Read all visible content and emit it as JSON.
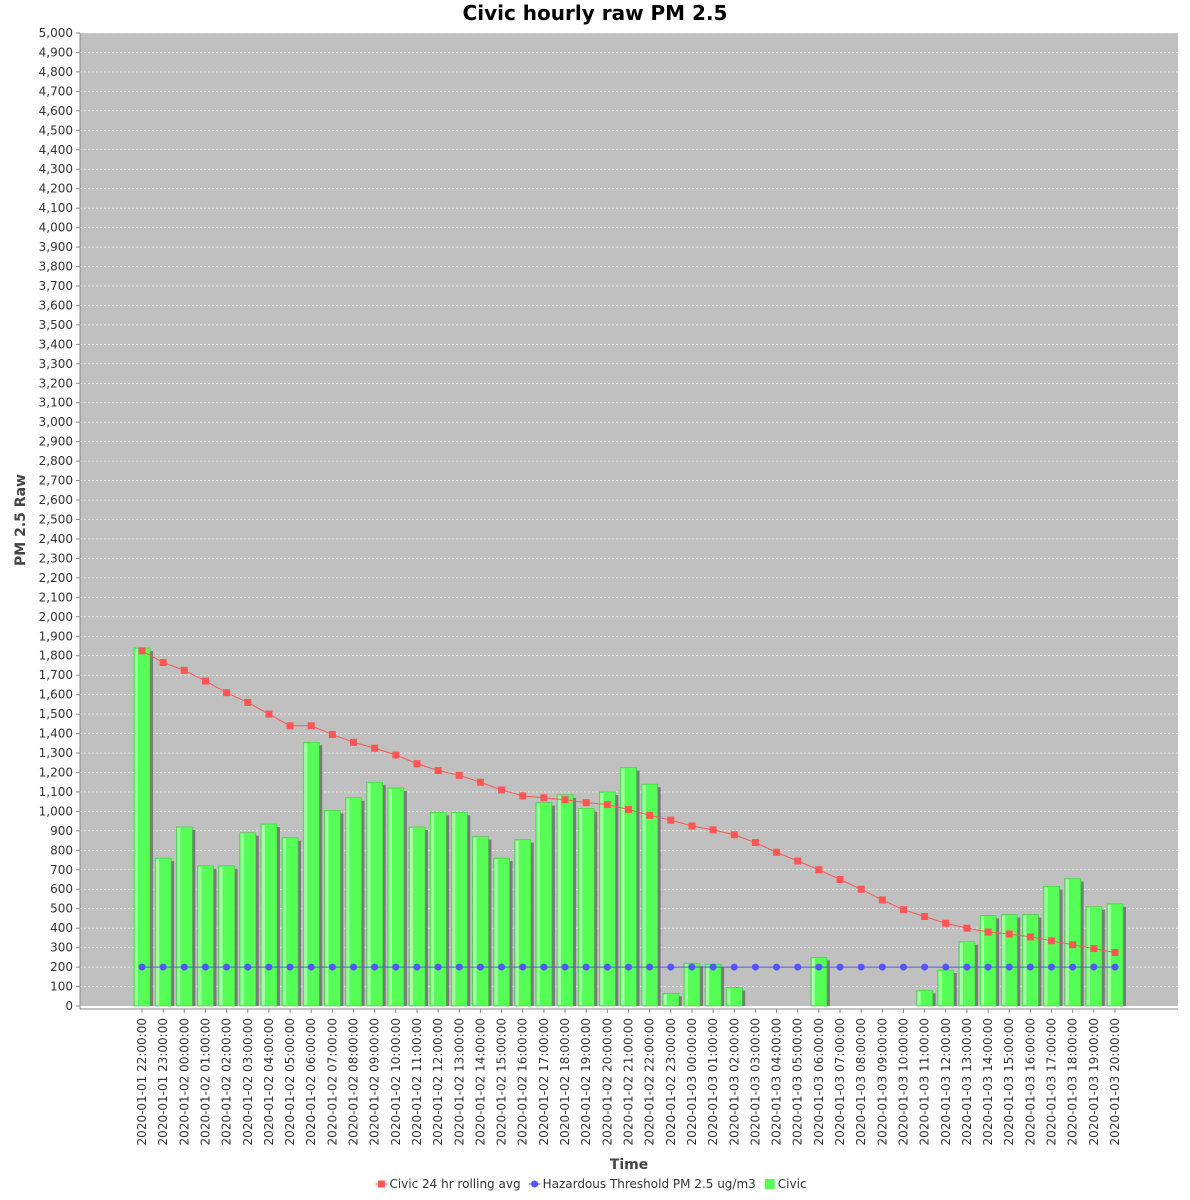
{
  "chart_data": {
    "type": "bar",
    "title": "Civic hourly raw PM 2.5",
    "xlabel": "Time",
    "ylabel": "PM 2.5 Raw",
    "ylim": [
      0,
      5000
    ],
    "ytick_step": 100,
    "grid": true,
    "legend_position": "bottom",
    "categories": [
      "2020-01-01 22:00:00",
      "2020-01-01 23:00:00",
      "2020-01-02 00:00:00",
      "2020-01-02 01:00:00",
      "2020-01-02 02:00:00",
      "2020-01-02 03:00:00",
      "2020-01-02 04:00:00",
      "2020-01-02 05:00:00",
      "2020-01-02 06:00:00",
      "2020-01-02 07:00:00",
      "2020-01-02 08:00:00",
      "2020-01-02 09:00:00",
      "2020-01-02 10:00:00",
      "2020-01-02 11:00:00",
      "2020-01-02 12:00:00",
      "2020-01-02 13:00:00",
      "2020-01-02 14:00:00",
      "2020-01-02 15:00:00",
      "2020-01-02 16:00:00",
      "2020-01-02 17:00:00",
      "2020-01-02 18:00:00",
      "2020-01-02 19:00:00",
      "2020-01-02 20:00:00",
      "2020-01-02 21:00:00",
      "2020-01-02 22:00:00",
      "2020-01-02 23:00:00",
      "2020-01-03 00:00:00",
      "2020-01-03 01:00:00",
      "2020-01-03 02:00:00",
      "2020-01-03 03:00:00",
      "2020-01-03 04:00:00",
      "2020-01-03 05:00:00",
      "2020-01-03 06:00:00",
      "2020-01-03 07:00:00",
      "2020-01-03 08:00:00",
      "2020-01-03 09:00:00",
      "2020-01-03 10:00:00",
      "2020-01-03 11:00:00",
      "2020-01-03 12:00:00",
      "2020-01-03 13:00:00",
      "2020-01-03 14:00:00",
      "2020-01-03 15:00:00",
      "2020-01-03 16:00:00",
      "2020-01-03 17:00:00",
      "2020-01-03 18:00:00",
      "2020-01-03 19:00:00",
      "2020-01-03 20:00:00"
    ],
    "series": [
      {
        "name": "Civic",
        "kind": "bar",
        "color": "#55ff55",
        "values": [
          1840,
          760,
          920,
          720,
          720,
          890,
          935,
          865,
          1355,
          1005,
          1070,
          1150,
          1120,
          920,
          995,
          995,
          870,
          760,
          855,
          1045,
          1085,
          1015,
          1100,
          1225,
          1140,
          65,
          220,
          215,
          95,
          0,
          0,
          0,
          250,
          0,
          0,
          0,
          0,
          80,
          185,
          330,
          465,
          470,
          470,
          615,
          655,
          510,
          525
        ]
      },
      {
        "name": "Civic 24 hr rolling avg",
        "kind": "line",
        "color": "#ff5555",
        "marker": "square",
        "values": [
          1825,
          1765,
          1725,
          1670,
          1610,
          1560,
          1500,
          1440,
          1440,
          1395,
          1355,
          1325,
          1290,
          1245,
          1210,
          1185,
          1150,
          1110,
          1080,
          1070,
          1060,
          1045,
          1035,
          1010,
          980,
          955,
          925,
          905,
          880,
          840,
          790,
          745,
          700,
          650,
          600,
          545,
          495,
          460,
          425,
          400,
          380,
          370,
          355,
          335,
          315,
          295,
          275
        ]
      },
      {
        "name": "Hazardous Threshold PM 2.5 ug/m3",
        "kind": "line",
        "color": "#5555ff",
        "marker": "circle",
        "values": [
          200,
          200,
          200,
          200,
          200,
          200,
          200,
          200,
          200,
          200,
          200,
          200,
          200,
          200,
          200,
          200,
          200,
          200,
          200,
          200,
          200,
          200,
          200,
          200,
          200,
          200,
          200,
          200,
          200,
          200,
          200,
          200,
          200,
          200,
          200,
          200,
          200,
          200,
          200,
          200,
          200,
          200,
          200,
          200,
          200,
          200,
          200
        ]
      }
    ],
    "legend": [
      {
        "label": "Civic 24 hr rolling avg",
        "color": "#ff5555",
        "marker": "square"
      },
      {
        "label": "Hazardous Threshold PM 2.5 ug/m3",
        "color": "#5555ff",
        "marker": "circle"
      },
      {
        "label": "Civic",
        "color": "#55ff55",
        "marker": "box"
      }
    ],
    "plot_background": "#c0c0c0"
  }
}
